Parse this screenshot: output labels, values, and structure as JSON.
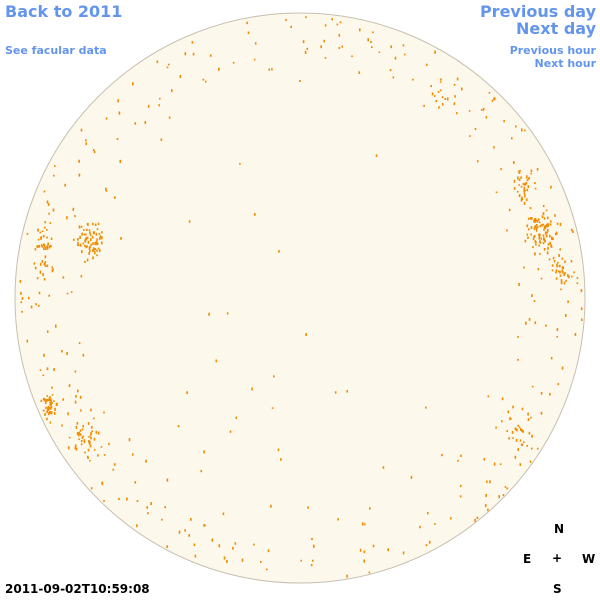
{
  "nav": {
    "back_label": "Back to 2011",
    "facular_label": "See facular data",
    "prev_day_label": "Previous day",
    "next_day_label": "Next day",
    "prev_hour_label": "Previous hour",
    "next_hour_label": "Next hour"
  },
  "timestamp": "2011-09-02T10:59:08",
  "compass": {
    "north": "N",
    "east": "E",
    "center": "+",
    "west": "W",
    "south": "S"
  },
  "colors": {
    "link": "#6495ed",
    "disk_fill": "#fdf8ec",
    "disk_outline": "#c8bfb0",
    "feature": "#f08c00"
  }
}
